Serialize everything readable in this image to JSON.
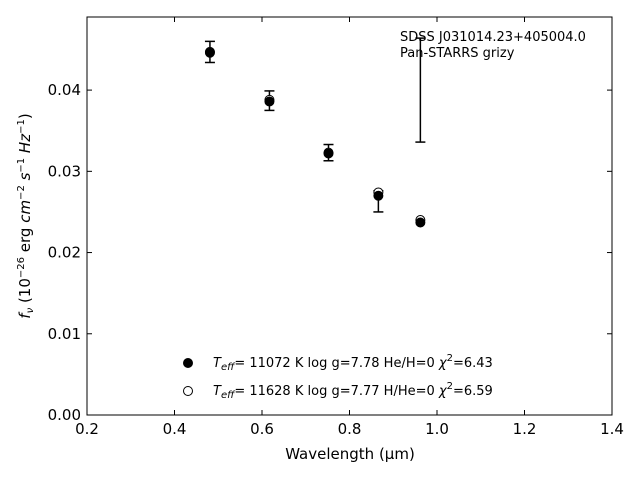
{
  "chart_data": {
    "type": "scatter",
    "xlim": [
      0.2,
      1.4
    ],
    "ylim": [
      0.0,
      0.049
    ],
    "x_ticks": [
      0.2,
      0.4,
      0.6,
      0.8,
      1.0,
      1.2,
      1.4
    ],
    "y_ticks": [
      0.0,
      0.01,
      0.02,
      0.03,
      0.04
    ],
    "x_tick_labels": [
      "0.2",
      "0.4",
      "0.6",
      "0.8",
      "1.0",
      "1.2",
      "1.4"
    ],
    "y_tick_labels": [
      "0.00",
      "0.01",
      "0.02",
      "0.03",
      "0.04"
    ],
    "xlabel": "Wavelength (μm)",
    "ylabel": {
      "pre": "f",
      "f_sub": "ν",
      "mid1": " (10",
      "exp1": "−26",
      "mid2": " erg ",
      "cm": "cm",
      "exp2": "−2",
      "s": " s",
      "exp3": "−1",
      "hz": " Hz",
      "exp4": "−1",
      "close": ")"
    },
    "grid": false,
    "annotations": [
      "SDSS J031014.23+405004.0",
      "Pan-STARRS grizy"
    ],
    "observed": {
      "x": [
        0.481,
        0.617,
        0.752,
        0.866,
        0.962
      ],
      "y": [
        0.0447,
        0.0387,
        0.0323,
        0.0263,
        0.04
      ],
      "yerr_low": [
        0.0013,
        0.0012,
        0.001,
        0.0013,
        0.0064
      ],
      "yerr_high": [
        0.0013,
        0.0012,
        0.001,
        0.0013,
        0.0064
      ]
    },
    "series": [
      {
        "marker": "filled",
        "x": [
          0.481,
          0.617,
          0.752,
          0.866,
          0.962
        ],
        "y": [
          0.0446,
          0.0386,
          0.0322,
          0.027,
          0.0237
        ]
      },
      {
        "marker": "open",
        "x": [
          0.481,
          0.617,
          0.752,
          0.866,
          0.962
        ],
        "y": [
          0.0447,
          0.0388,
          0.0323,
          0.0274,
          0.024
        ]
      }
    ],
    "legend": {
      "placement": "lower-center",
      "entries": [
        {
          "marker": "filled",
          "t_pre": "T",
          "t_sub": "eff",
          "text1": "= 11072 K  log g=7.78  He/H=0  ",
          "chi": "χ",
          "chi_sup": "2",
          "text2": "=6.43"
        },
        {
          "marker": "open",
          "t_pre": "T",
          "t_sub": "eff",
          "text1": "= 11628 K  log g=7.77  H/He=0  ",
          "chi": "χ",
          "chi_sup": "2",
          "text2": "=6.59"
        }
      ]
    },
    "colors": {
      "marker": "#000000",
      "axes": "#000000",
      "background": "#ffffff"
    }
  }
}
